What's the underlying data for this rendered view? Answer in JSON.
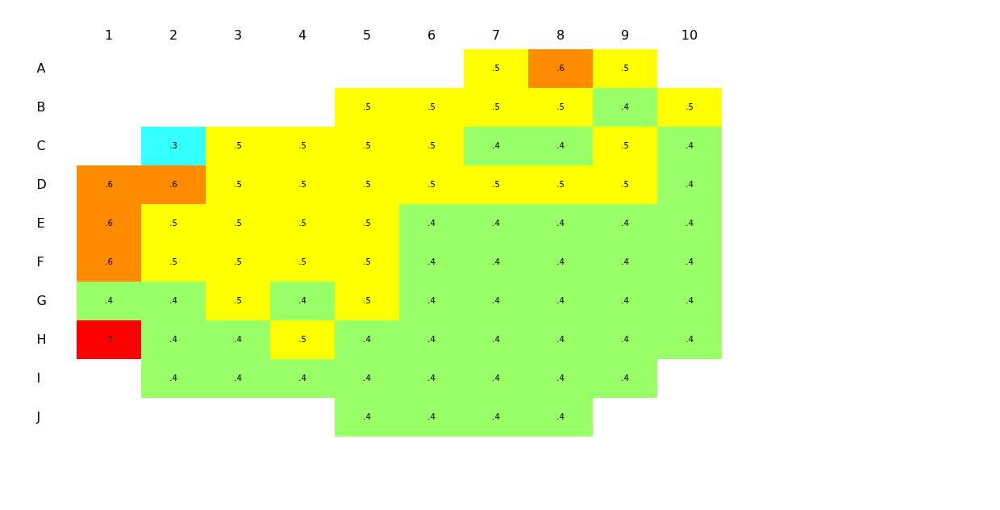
{
  "chart_data": {
    "type": "heatmap",
    "categories": [
      "1",
      "2",
      "3",
      "4",
      "5",
      "6",
      "7",
      "8",
      "9",
      "10"
    ],
    "y_categories": [
      "A",
      "B",
      "C",
      "D",
      "E",
      "F",
      "G",
      "H",
      "I",
      "J"
    ],
    "cells": [
      [
        null,
        null,
        null,
        null,
        null,
        null,
        0.5,
        0.6,
        0.5,
        null
      ],
      [
        null,
        null,
        null,
        null,
        0.5,
        0.5,
        0.5,
        0.5,
        0.4,
        0.5
      ],
      [
        null,
        0.3,
        0.5,
        0.5,
        0.5,
        0.5,
        0.4,
        0.4,
        0.5,
        0.4
      ],
      [
        0.6,
        0.6,
        0.5,
        0.5,
        0.5,
        0.5,
        0.5,
        0.5,
        0.5,
        0.4
      ],
      [
        0.6,
        0.5,
        0.5,
        0.5,
        0.5,
        0.4,
        0.4,
        0.4,
        0.4,
        0.4
      ],
      [
        0.6,
        0.5,
        0.5,
        0.5,
        0.5,
        0.4,
        0.4,
        0.4,
        0.4,
        0.4
      ],
      [
        0.4,
        0.4,
        0.5,
        0.4,
        0.5,
        0.4,
        0.4,
        0.4,
        0.4,
        0.4
      ],
      [
        0.7,
        0.4,
        0.4,
        0.5,
        0.4,
        0.4,
        0.4,
        0.4,
        0.4,
        0.4
      ],
      [
        null,
        0.4,
        0.4,
        0.4,
        0.4,
        0.4,
        0.4,
        0.4,
        0.4,
        null
      ],
      [
        null,
        null,
        null,
        null,
        0.4,
        0.4,
        0.4,
        0.4,
        null,
        null
      ]
    ],
    "cell_labels": [
      [
        null,
        null,
        null,
        null,
        null,
        null,
        ".5",
        ".6",
        ".5",
        null
      ],
      [
        null,
        null,
        null,
        null,
        ".5",
        ".5",
        ".5",
        ".5",
        ".4",
        ".5"
      ],
      [
        null,
        ".3",
        ".5",
        ".5",
        ".5",
        ".5",
        ".4",
        ".4",
        ".5",
        ".4"
      ],
      [
        ".6",
        ".6",
        ".5",
        ".5",
        ".5",
        ".5",
        ".5",
        ".5",
        ".5",
        ".4"
      ],
      [
        ".6",
        ".5",
        ".5",
        ".5",
        ".5",
        ".4",
        ".4",
        ".4",
        ".4",
        ".4"
      ],
      [
        ".6",
        ".5",
        ".5",
        ".5",
        ".5",
        ".4",
        ".4",
        ".4",
        ".4",
        ".4"
      ],
      [
        ".4",
        ".4",
        ".5",
        ".4",
        ".5",
        ".4",
        ".4",
        ".4",
        ".4",
        ".4"
      ],
      [
        ".7",
        ".4",
        ".4",
        ".5",
        ".4",
        ".4",
        ".4",
        ".4",
        ".4",
        ".4"
      ],
      [
        null,
        ".4",
        ".4",
        ".4",
        ".4",
        ".4",
        ".4",
        ".4",
        ".4",
        null
      ],
      [
        null,
        null,
        null,
        null,
        ".4",
        ".4",
        ".4",
        ".4",
        null,
        null
      ]
    ]
  }
}
